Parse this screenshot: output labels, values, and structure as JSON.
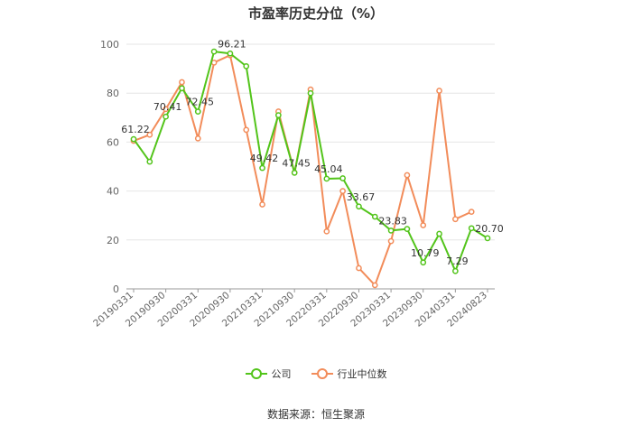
{
  "chart_data": {
    "type": "line",
    "title": "市盈率历史分位（%）",
    "ylim": [
      0,
      100
    ],
    "yticks": [
      0,
      20,
      40,
      60,
      80,
      100
    ],
    "grid": true,
    "legend_position": "bottom",
    "x": [
      "20190331",
      "20190630",
      "20190930",
      "20191231",
      "20200331",
      "20200630",
      "20200930",
      "20201231",
      "20210331",
      "20210630",
      "20210930",
      "20211231",
      "20220331",
      "20220630",
      "20220930",
      "20221231",
      "20230331",
      "20230630",
      "20230930",
      "20231231",
      "20240331",
      "20240630",
      "20240823"
    ],
    "x_tick_labels": [
      "20190331",
      "20190930",
      "20200331",
      "20200930",
      "20210331",
      "20210930",
      "20220331",
      "20220930",
      "20230331",
      "20230930",
      "20240331",
      "20240823"
    ],
    "series": [
      {
        "name": "公司",
        "color": "#52c41a",
        "values": [
          61.22,
          52.0,
          70.41,
          82.0,
          72.45,
          97.0,
          96.21,
          91.0,
          49.42,
          71.0,
          47.45,
          80.0,
          45.04,
          45.2,
          33.67,
          29.5,
          23.83,
          24.5,
          10.79,
          22.5,
          7.29,
          24.8,
          20.7
        ],
        "data_labels": [
          "61.22",
          "",
          "70.41",
          "",
          "72.45",
          "",
          "96.21",
          "",
          "49.42",
          "",
          "47.45",
          "",
          "45.04",
          "",
          "33.67",
          "",
          "23.83",
          "",
          "10.79",
          "",
          "7.29",
          "",
          "20.70"
        ]
      },
      {
        "name": "行业中位数",
        "color": "#f28c5a",
        "values": [
          60.5,
          63.0,
          73.5,
          84.5,
          61.5,
          92.5,
          95.5,
          65.0,
          34.5,
          72.5,
          47.5,
          81.5,
          23.5,
          40.0,
          8.5,
          1.5,
          19.5,
          46.5,
          26.0,
          81.0,
          28.5,
          31.5,
          null
        ]
      }
    ]
  },
  "legend": {
    "items": [
      "公司",
      "行业中位数"
    ]
  },
  "source": "数据来源：恒生聚源"
}
